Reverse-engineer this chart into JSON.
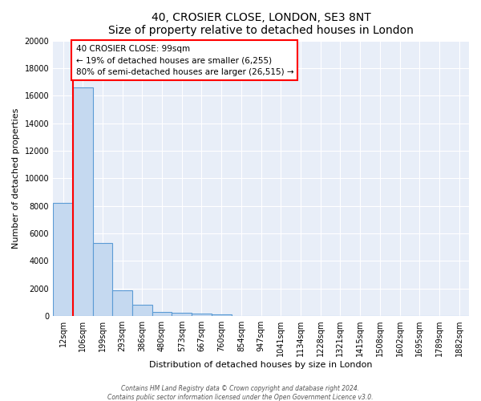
{
  "title": "40, CROSIER CLOSE, LONDON, SE3 8NT",
  "subtitle": "Size of property relative to detached houses in London",
  "xlabel": "Distribution of detached houses by size in London",
  "ylabel": "Number of detached properties",
  "bin_labels": [
    "12sqm",
    "106sqm",
    "199sqm",
    "293sqm",
    "386sqm",
    "480sqm",
    "573sqm",
    "667sqm",
    "760sqm",
    "854sqm",
    "947sqm",
    "1041sqm",
    "1134sqm",
    "1228sqm",
    "1321sqm",
    "1415sqm",
    "1508sqm",
    "1602sqm",
    "1695sqm",
    "1789sqm",
    "1882sqm"
  ],
  "bar_values": [
    8200,
    16600,
    5300,
    1850,
    800,
    320,
    220,
    170,
    150,
    0,
    0,
    0,
    0,
    0,
    0,
    0,
    0,
    0,
    0,
    0,
    0
  ],
  "bar_color": "#c5d9f0",
  "bar_edge_color": "#5b9bd5",
  "red_line_x": 1,
  "annotation_line1": "40 CROSIER CLOSE: 99sqm",
  "annotation_line2": "← 19% of detached houses are smaller (6,255)",
  "annotation_line3": "80% of semi-detached houses are larger (26,515) →",
  "box_facecolor": "white",
  "box_edgecolor": "red",
  "ylim": [
    0,
    20000
  ],
  "yticks": [
    0,
    2000,
    4000,
    6000,
    8000,
    10000,
    12000,
    14000,
    16000,
    18000,
    20000
  ],
  "footer1": "Contains HM Land Registry data © Crown copyright and database right 2024.",
  "footer2": "Contains public sector information licensed under the Open Government Licence v3.0.",
  "bg_color": "#ffffff",
  "plot_bg_color": "#e8eef8",
  "grid_color": "#ffffff",
  "title_fontsize": 10,
  "subtitle_fontsize": 9,
  "ylabel_fontsize": 8,
  "xlabel_fontsize": 8,
  "tick_fontsize": 7,
  "annot_fontsize": 7.5,
  "footer_fontsize": 5.5
}
